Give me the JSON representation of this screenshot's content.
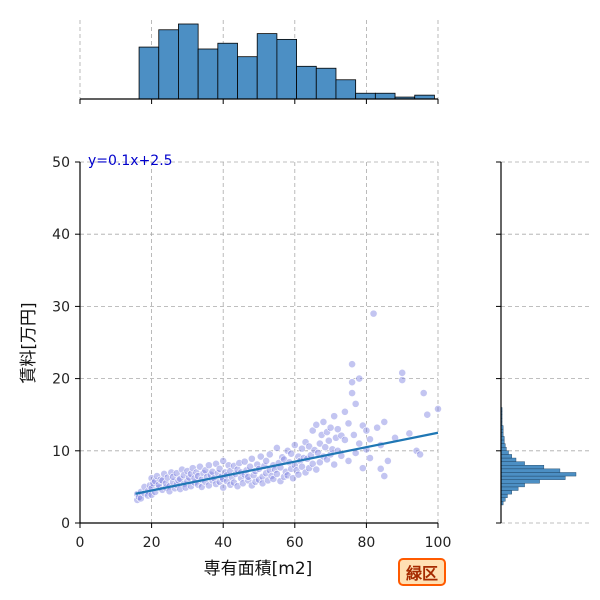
{
  "chart_data": {
    "type": "scatter",
    "xlabel": "専有面積[m2]",
    "ylabel": "賃料[万円]",
    "xlim": [
      0,
      100
    ],
    "ylim": [
      0,
      50
    ],
    "xticks": [
      0,
      20,
      40,
      60,
      80,
      100
    ],
    "yticks": [
      0,
      10,
      20,
      30,
      40,
      50
    ],
    "grid": true,
    "annotation": "y=0.1x+2.5",
    "regression": {
      "slope": 0.1,
      "intercept": 2.5,
      "x_range": [
        15.5,
        100
      ]
    },
    "badge": "緑区",
    "colors": {
      "points": "#7b7fe0",
      "regression_line": "#1f77b4",
      "hist_fill": "#4c8fc4",
      "annotation": "#0000cc",
      "badge_border": "#ff5a00"
    },
    "points": [
      [
        16,
        3.2
      ],
      [
        16,
        4.0
      ],
      [
        16.5,
        3.6
      ],
      [
        17,
        4.3
      ],
      [
        17,
        3.4
      ],
      [
        18,
        4.1
      ],
      [
        18,
        5.0
      ],
      [
        19,
        4.4
      ],
      [
        19,
        3.8
      ],
      [
        19.5,
        5.2
      ],
      [
        20,
        4.8
      ],
      [
        20,
        3.9
      ],
      [
        20,
        6.2
      ],
      [
        20.5,
        5.5
      ],
      [
        21,
        4.3
      ],
      [
        21,
        5.8
      ],
      [
        21.5,
        6.5
      ],
      [
        22,
        4.9
      ],
      [
        22,
        5.3
      ],
      [
        22.5,
        6.0
      ],
      [
        23,
        4.6
      ],
      [
        23,
        5.9
      ],
      [
        23.5,
        6.8
      ],
      [
        24,
        4.9
      ],
      [
        24,
        5.5
      ],
      [
        24.5,
        6.3
      ],
      [
        25,
        5.1
      ],
      [
        25,
        4.4
      ],
      [
        25.5,
        7.0
      ],
      [
        26,
        5.7
      ],
      [
        26,
        6.4
      ],
      [
        26.5,
        4.8
      ],
      [
        27,
        5.3
      ],
      [
        27,
        6.9
      ],
      [
        27.5,
        5.9
      ],
      [
        28,
        4.7
      ],
      [
        28,
        6.1
      ],
      [
        28.5,
        7.4
      ],
      [
        29,
        5.4
      ],
      [
        29,
        6.6
      ],
      [
        29.5,
        4.9
      ],
      [
        30,
        5.8
      ],
      [
        30,
        7.2
      ],
      [
        30.5,
        6.3
      ],
      [
        31,
        5.1
      ],
      [
        31,
        6.8
      ],
      [
        31.5,
        7.6
      ],
      [
        32,
        5.6
      ],
      [
        32,
        6.2
      ],
      [
        32.5,
        7.0
      ],
      [
        33,
        5.3
      ],
      [
        33,
        6.5
      ],
      [
        33.5,
        7.8
      ],
      [
        34,
        6.0
      ],
      [
        34,
        5.0
      ],
      [
        34.5,
        6.9
      ],
      [
        35,
        5.7
      ],
      [
        35,
        7.3
      ],
      [
        35.5,
        6.4
      ],
      [
        36,
        5.2
      ],
      [
        36,
        8.0
      ],
      [
        36.5,
        6.7
      ],
      [
        37,
        5.9
      ],
      [
        37,
        7.1
      ],
      [
        37.5,
        6.2
      ],
      [
        38,
        5.4
      ],
      [
        38,
        8.2
      ],
      [
        38.5,
        6.9
      ],
      [
        39,
        5.7
      ],
      [
        39,
        7.5
      ],
      [
        39.5,
        6.4
      ],
      [
        40,
        4.9
      ],
      [
        40,
        6.1
      ],
      [
        40,
        8.6
      ],
      [
        40.5,
        7.0
      ],
      [
        41,
        5.8
      ],
      [
        41,
        6.6
      ],
      [
        41.5,
        8.0
      ],
      [
        42,
        5.3
      ],
      [
        42,
        7.2
      ],
      [
        42.5,
        6.3
      ],
      [
        43,
        7.9
      ],
      [
        43,
        5.6
      ],
      [
        43.5,
        6.8
      ],
      [
        44,
        7.4
      ],
      [
        44,
        5.1
      ],
      [
        44.5,
        8.3
      ],
      [
        45,
        6.2
      ],
      [
        45,
        7.0
      ],
      [
        45.5,
        5.5
      ],
      [
        46,
        6.7
      ],
      [
        46,
        8.5
      ],
      [
        46.5,
        7.3
      ],
      [
        47,
        5.9
      ],
      [
        47,
        6.4
      ],
      [
        47.5,
        7.8
      ],
      [
        48,
        5.2
      ],
      [
        48,
        8.9
      ],
      [
        48.5,
        6.6
      ],
      [
        49,
        7.2
      ],
      [
        49,
        5.7
      ],
      [
        49.5,
        8.1
      ],
      [
        50,
        6.0
      ],
      [
        50,
        7.5
      ],
      [
        50.5,
        9.2
      ],
      [
        51,
        6.4
      ],
      [
        51,
        5.5
      ],
      [
        51.5,
        7.9
      ],
      [
        52,
        6.9
      ],
      [
        52,
        8.6
      ],
      [
        52.5,
        5.9
      ],
      [
        53,
        7.3
      ],
      [
        53,
        9.5
      ],
      [
        53.5,
        6.5
      ],
      [
        54,
        8.0
      ],
      [
        54,
        6.1
      ],
      [
        54.5,
        7.4
      ],
      [
        55,
        10.4
      ],
      [
        55,
        6.8
      ],
      [
        55.5,
        8.3
      ],
      [
        56,
        5.8
      ],
      [
        56,
        7.7
      ],
      [
        56.5,
        9.1
      ],
      [
        57,
        6.4
      ],
      [
        57,
        8.8
      ],
      [
        57.5,
        7.1
      ],
      [
        58,
        10.0
      ],
      [
        58,
        6.6
      ],
      [
        58.5,
        8.4
      ],
      [
        59,
        7.5
      ],
      [
        59,
        9.6
      ],
      [
        59.5,
        6.2
      ],
      [
        60,
        8.0
      ],
      [
        60,
        10.8
      ],
      [
        60.5,
        7.3
      ],
      [
        61,
        9.2
      ],
      [
        61,
        6.7
      ],
      [
        61.5,
        8.6
      ],
      [
        62,
        10.3
      ],
      [
        62,
        7.8
      ],
      [
        62.5,
        9.0
      ],
      [
        63,
        11.2
      ],
      [
        63,
        7.0
      ],
      [
        63.5,
        8.9
      ],
      [
        64,
        10.6
      ],
      [
        64,
        7.6
      ],
      [
        64.5,
        9.4
      ],
      [
        65,
        12.8
      ],
      [
        65,
        8.2
      ],
      [
        65.5,
        10.1
      ],
      [
        66,
        7.4
      ],
      [
        66,
        13.6
      ],
      [
        66.5,
        9.7
      ],
      [
        67,
        11.0
      ],
      [
        67,
        8.4
      ],
      [
        67.5,
        12.2
      ],
      [
        68,
        9.2
      ],
      [
        68,
        14.0
      ],
      [
        68.5,
        10.5
      ],
      [
        69,
        8.8
      ],
      [
        69,
        12.6
      ],
      [
        69.5,
        11.4
      ],
      [
        70,
        9.5
      ],
      [
        70,
        13.2
      ],
      [
        70.5,
        10.2
      ],
      [
        71,
        8.1
      ],
      [
        71,
        14.8
      ],
      [
        71.5,
        11.8
      ],
      [
        72,
        10.0
      ],
      [
        72,
        13.0
      ],
      [
        73,
        12.1
      ],
      [
        73,
        9.3
      ],
      [
        74,
        15.4
      ],
      [
        74,
        11.5
      ],
      [
        75,
        8.6
      ],
      [
        75,
        13.8
      ],
      [
        76,
        18.0
      ],
      [
        76,
        19.5
      ],
      [
        76,
        22.0
      ],
      [
        76.5,
        12.2
      ],
      [
        77,
        9.7
      ],
      [
        77,
        16.5
      ],
      [
        78,
        20.0
      ],
      [
        78,
        11.0
      ],
      [
        79,
        13.5
      ],
      [
        79,
        7.6
      ],
      [
        80,
        12.8
      ],
      [
        80,
        10.2
      ],
      [
        81,
        9.0
      ],
      [
        81,
        11.6
      ],
      [
        82,
        29.0
      ],
      [
        83,
        13.2
      ],
      [
        84,
        7.5
      ],
      [
        84,
        10.8
      ],
      [
        85,
        6.5
      ],
      [
        85,
        14.0
      ],
      [
        86,
        8.6
      ],
      [
        88,
        11.8
      ],
      [
        90,
        20.8
      ],
      [
        90,
        19.8
      ],
      [
        92,
        12.4
      ],
      [
        94,
        10.0
      ],
      [
        95,
        9.5
      ],
      [
        96,
        18.0
      ],
      [
        97,
        15.0
      ],
      [
        100,
        15.8
      ]
    ],
    "x_hist": {
      "bin_edges": [
        0,
        5.5,
        11,
        16.5,
        22,
        27.5,
        33,
        38.5,
        44,
        49.5,
        55,
        60.5,
        66,
        71.5,
        77,
        82.5,
        88,
        93.5,
        99
      ],
      "counts": [
        0,
        0,
        0,
        27,
        36,
        39,
        26,
        29,
        22,
        34,
        31,
        17,
        16,
        10,
        3,
        3,
        1,
        2
      ]
    },
    "y_hist": {
      "bin_edges": [
        2.5,
        3.0,
        3.5,
        4.0,
        4.5,
        5.0,
        5.5,
        6.0,
        6.5,
        7.0,
        7.5,
        8.0,
        8.5,
        9.0,
        9.5,
        10.0,
        10.5,
        11.0,
        11.5,
        12.0,
        12.5,
        13.0,
        13.5,
        14.0,
        14.5,
        15.0,
        15.5,
        16.0
      ],
      "counts": [
        2,
        4,
        6,
        10,
        16,
        22,
        36,
        60,
        70,
        55,
        40,
        22,
        14,
        10,
        7,
        5,
        4,
        3,
        3,
        2,
        2,
        2,
        1,
        1,
        1,
        1,
        1
      ]
    }
  }
}
